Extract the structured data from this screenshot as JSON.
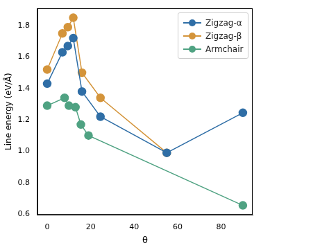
{
  "chart_data": {
    "type": "line",
    "x_label": "θ",
    "y_label": "Line energy (eV/Å)",
    "xlim": [
      -4.5,
      94.5
    ],
    "xticks": [
      0,
      20,
      40,
      60,
      80
    ],
    "ylim": [
      0.595,
      1.91
    ],
    "yticks": [
      0.6,
      0.8,
      {
        "value": 1,
        "label": "1.0"
      },
      1.2,
      1.4,
      1.6,
      1.8
    ],
    "grid": false,
    "legend": "upper right",
    "series": [
      {
        "name": "Zigzag-α",
        "color": "#2f6ea6",
        "marker": "circle",
        "line_style": "solid",
        "x": [
          0,
          7,
          9.5,
          12,
          16,
          24.5,
          55,
          90
        ],
        "values": [
          1.43,
          1.63,
          1.67,
          1.72,
          1.38,
          1.22,
          0.99,
          1.245
        ]
      },
      {
        "name": "Zigzag-β",
        "color": "#d4943a",
        "marker": "circle",
        "line_style": "solid",
        "x": [
          0,
          7,
          9.5,
          12,
          16,
          24.5,
          55
        ],
        "values": [
          1.52,
          1.75,
          1.79,
          1.85,
          1.5,
          1.34,
          0.99
        ]
      },
      {
        "name": "Armchair",
        "color": "#4fa282",
        "marker": "circle",
        "line_style": "solid",
        "x": [
          0,
          8,
          10,
          13,
          15.5,
          19,
          90
        ],
        "values": [
          1.29,
          1.34,
          1.29,
          1.28,
          1.17,
          1.1,
          0.655
        ]
      }
    ]
  }
}
